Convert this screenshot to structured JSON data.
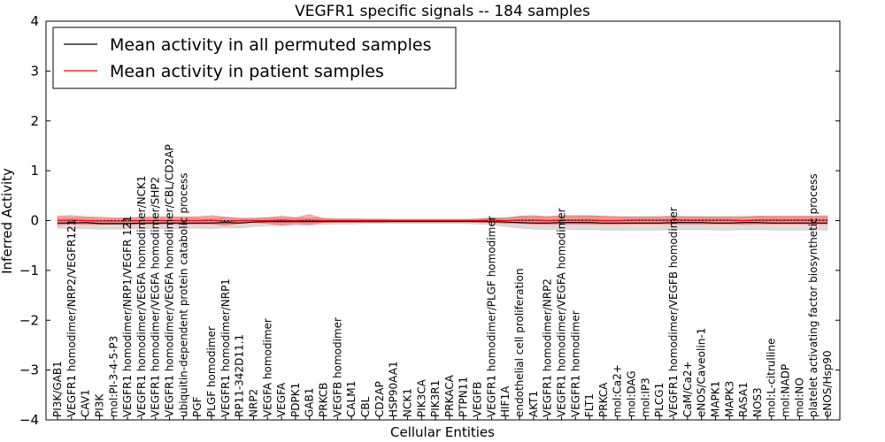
{
  "chart_data": {
    "type": "line",
    "title": "VEGFR1 specific signals -- 184 samples",
    "xlabel": "Cellular Entities",
    "ylabel": "Inferred Activity",
    "ylim": [
      -4,
      4
    ],
    "yticks": [
      "4",
      "3",
      "2",
      "1",
      "0",
      "−1",
      "−2",
      "−3",
      "−4"
    ],
    "legend_position": "top-left",
    "categories": [
      "PI3K/GAB1",
      "VEGFR1 homodimer/NRP2/VEGFR121",
      "CAV1",
      "PI3K",
      "mol:PI-3-4-5-P3",
      "VEGFR1 homodimer/NRP1/VEGFR 121",
      "VEGFR1 homodimer/VEGFA homodimer/NCK1",
      "VEGFR1 homodimer/VEGFA homodimer/SHP2",
      "VEGFR1 homodimer/VEGFA homodimer/CBL/CD2AP",
      "ubiquitin-dependent protein catabolic process",
      "PGF",
      "PLGF homodimer",
      "VEGFR1 homodimer/NRP1",
      "RP11-342D11.1",
      "NRP2",
      "VEGFA homodimer",
      "VEGFA",
      "PDPK1",
      "GAB1",
      "PRKCB",
      "VEGFB homodimer",
      "CALM1",
      "CBL",
      "CD2AP",
      "HSP90AA1",
      "NCK1",
      "PIK3CA",
      "PIK3R1",
      "PRKACA",
      "PTPN11",
      "VEGFB",
      "VEGFR1 homodimer/PLGF homodimer",
      "HIF1A",
      "endothelial cell proliferation",
      "AKT1",
      "VEGFR1 homodimer/NRP2",
      "VEGFR1 homodimer/VEGFA homodimer",
      "VEGFR1 homodimer",
      "FLT1",
      "PRKCA",
      "mol:Ca2+",
      "mol:DAG",
      "mol:IP3",
      "PLCG1",
      "VEGFR1 homodimer/VEGFB homodimer",
      "CaM/Ca2+",
      "eNOS/Caveolin-1",
      "MAPK1",
      "MAPK3",
      "RASA1",
      "NOS3",
      "mol:L-citrulline",
      "mol:NADP",
      "mol:NO",
      "platelet activating factor biosynthetic process",
      "eNOS/Hsp90"
    ],
    "series": [
      {
        "name": "Mean activity in all permuted samples",
        "color": "#000000",
        "band_color": "#999999",
        "values": [
          -0.05,
          -0.05,
          -0.04,
          -0.06,
          -0.06,
          -0.06,
          -0.05,
          -0.05,
          -0.05,
          -0.05,
          -0.05,
          -0.05,
          -0.04,
          -0.05,
          -0.03,
          -0.02,
          -0.02,
          -0.02,
          -0.02,
          -0.02,
          -0.02,
          -0.02,
          -0.02,
          -0.02,
          -0.02,
          -0.02,
          -0.02,
          -0.02,
          -0.02,
          -0.02,
          -0.02,
          -0.02,
          -0.03,
          -0.04,
          -0.05,
          -0.05,
          -0.04,
          -0.04,
          -0.04,
          -0.05,
          -0.05,
          -0.05,
          -0.05,
          -0.05,
          -0.04,
          -0.04,
          -0.04,
          -0.05,
          -0.05,
          -0.04,
          -0.04,
          -0.05,
          -0.05,
          -0.05,
          -0.05,
          -0.05
        ],
        "upper": [
          0.05,
          0.06,
          0.06,
          0.04,
          0.04,
          0.04,
          0.05,
          0.05,
          0.05,
          0.05,
          0.05,
          0.05,
          0.06,
          0.04,
          0.06,
          0.06,
          0.06,
          0.05,
          0.05,
          0.05,
          0.04,
          0.04,
          0.03,
          0.03,
          0.03,
          0.03,
          0.03,
          0.03,
          0.03,
          0.03,
          0.03,
          0.04,
          0.06,
          0.08,
          0.08,
          0.08,
          0.08,
          0.09,
          0.09,
          0.08,
          0.07,
          0.07,
          0.07,
          0.07,
          0.08,
          0.08,
          0.08,
          0.07,
          0.07,
          0.08,
          0.08,
          0.07,
          0.07,
          0.07,
          0.07,
          0.07
        ],
        "lower": [
          -0.15,
          -0.16,
          -0.16,
          -0.17,
          -0.17,
          -0.17,
          -0.16,
          -0.16,
          -0.16,
          -0.16,
          -0.15,
          -0.16,
          -0.14,
          -0.15,
          -0.12,
          -0.1,
          -0.1,
          -0.09,
          -0.09,
          -0.08,
          -0.07,
          -0.07,
          -0.06,
          -0.06,
          -0.06,
          -0.06,
          -0.06,
          -0.06,
          -0.06,
          -0.06,
          -0.07,
          -0.08,
          -0.12,
          -0.15,
          -0.17,
          -0.18,
          -0.17,
          -0.18,
          -0.18,
          -0.19,
          -0.19,
          -0.19,
          -0.19,
          -0.19,
          -0.18,
          -0.18,
          -0.18,
          -0.19,
          -0.19,
          -0.18,
          -0.18,
          -0.19,
          -0.19,
          -0.19,
          -0.19,
          -0.19
        ]
      },
      {
        "name": "Mean activity in patient samples",
        "color": "#ff0000",
        "band_color": "#ff3030",
        "values": [
          0.0,
          0.01,
          0.0,
          -0.01,
          -0.01,
          -0.01,
          0.0,
          0.0,
          0.0,
          0.0,
          0.0,
          0.01,
          -0.02,
          0.0,
          0.0,
          0.0,
          0.01,
          0.0,
          0.01,
          0.0,
          0.0,
          0.0,
          0.0,
          0.0,
          0.0,
          0.0,
          0.0,
          0.0,
          0.0,
          0.0,
          0.0,
          0.01,
          0.0,
          0.01,
          0.01,
          0.0,
          0.01,
          0.01,
          0.01,
          0.0,
          0.0,
          0.01,
          0.01,
          0.01,
          0.01,
          0.01,
          0.01,
          0.01,
          0.01,
          0.0,
          0.01,
          0.01,
          0.01,
          0.01,
          0.01,
          0.01
        ],
        "upper": [
          0.09,
          0.1,
          0.08,
          0.07,
          0.06,
          0.06,
          0.07,
          0.08,
          0.08,
          0.08,
          0.08,
          0.1,
          0.07,
          0.05,
          0.04,
          0.06,
          0.09,
          0.06,
          0.12,
          0.04,
          0.03,
          0.03,
          0.03,
          0.03,
          0.02,
          0.02,
          0.02,
          0.02,
          0.02,
          0.02,
          0.03,
          0.06,
          0.05,
          0.09,
          0.1,
          0.08,
          0.1,
          0.1,
          0.1,
          0.09,
          0.08,
          0.08,
          0.08,
          0.08,
          0.09,
          0.08,
          0.08,
          0.08,
          0.08,
          0.08,
          0.09,
          0.09,
          0.09,
          0.09,
          0.09,
          0.1
        ],
        "lower": [
          -0.09,
          -0.07,
          -0.08,
          -0.08,
          -0.08,
          -0.08,
          -0.08,
          -0.07,
          -0.07,
          -0.07,
          -0.07,
          -0.07,
          -0.1,
          -0.06,
          -0.04,
          -0.06,
          -0.09,
          -0.06,
          -0.08,
          -0.04,
          -0.03,
          -0.03,
          -0.03,
          -0.03,
          -0.02,
          -0.02,
          -0.02,
          -0.02,
          -0.02,
          -0.02,
          -0.03,
          -0.04,
          -0.06,
          -0.06,
          -0.07,
          -0.08,
          -0.07,
          -0.07,
          -0.07,
          -0.08,
          -0.08,
          -0.07,
          -0.07,
          -0.07,
          -0.07,
          -0.07,
          -0.07,
          -0.07,
          -0.07,
          -0.08,
          -0.07,
          -0.07,
          -0.07,
          -0.07,
          -0.07,
          -0.07
        ]
      }
    ]
  }
}
